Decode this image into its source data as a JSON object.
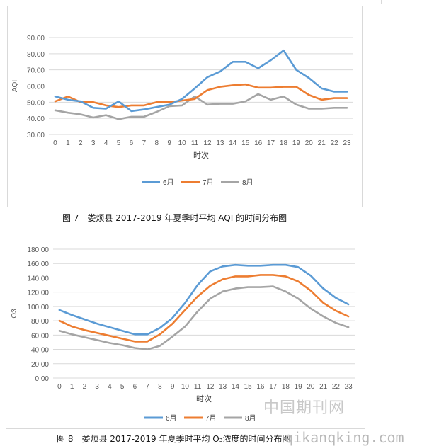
{
  "charts": [
    {
      "type": "line",
      "ylabel": "AQI",
      "xlabel": "时次",
      "ylim": [
        30,
        90
      ],
      "yticks": [
        "30.00",
        "40.00",
        "50.00",
        "60.00",
        "70.00",
        "80.00",
        "90.00"
      ],
      "x": [
        "0",
        "1",
        "2",
        "3",
        "4",
        "5",
        "6",
        "7",
        "8",
        "9",
        "10",
        "11",
        "12",
        "13",
        "14",
        "15",
        "16",
        "17",
        "18",
        "19",
        "20",
        "21",
        "22",
        "23"
      ],
      "grid": true,
      "legend": "bottom",
      "series": [
        {
          "name": "6月",
          "color": "#5b9bd5",
          "values": [
            53.5,
            51.5,
            50.5,
            46.5,
            46,
            50.5,
            44.5,
            45.5,
            47,
            48.5,
            52,
            58.5,
            65.5,
            69,
            75,
            75,
            71,
            76,
            82,
            70,
            65,
            58.5,
            56.5,
            56.5
          ]
        },
        {
          "name": "7月",
          "color": "#ed7d31",
          "values": [
            50.5,
            53.5,
            50,
            50,
            48,
            47,
            48,
            48,
            50,
            50,
            51,
            52,
            57.5,
            59.5,
            60.5,
            61,
            59,
            59,
            59.5,
            59.5,
            54.5,
            51.5,
            52.5,
            52.5
          ]
        },
        {
          "name": "8月",
          "color": "#a5a5a5",
          "values": [
            45,
            43.5,
            42.5,
            40.5,
            42,
            39.5,
            41,
            41,
            44,
            47.5,
            48,
            53.5,
            48.5,
            49,
            49,
            50.5,
            55,
            51.5,
            53.5,
            48.5,
            46,
            46,
            46.5,
            46.5
          ]
        }
      ]
    },
    {
      "type": "line",
      "ylabel": "O3",
      "xlabel": "时次",
      "ylim": [
        0,
        180
      ],
      "yticks": [
        "0.00",
        "20.00",
        "40.00",
        "60.00",
        "80.00",
        "100.00",
        "120.00",
        "140.00",
        "160.00",
        "180.00"
      ],
      "x": [
        "0",
        "1",
        "2",
        "3",
        "4",
        "5",
        "6",
        "7",
        "8",
        "9",
        "10",
        "11",
        "12",
        "13",
        "14",
        "15",
        "16",
        "17",
        "18",
        "19",
        "20",
        "21",
        "22",
        "23"
      ],
      "grid": true,
      "legend": "bottom",
      "series": [
        {
          "name": "6月",
          "color": "#5b9bd5",
          "values": [
            95,
            88,
            82,
            76,
            71,
            66,
            61,
            61,
            70,
            84,
            105,
            130,
            149,
            156,
            158,
            157,
            157,
            158,
            158,
            155,
            143,
            125,
            112,
            103
          ]
        },
        {
          "name": "7月",
          "color": "#ed7d31",
          "values": [
            80,
            72,
            67,
            63,
            59,
            55,
            51,
            51,
            61,
            76,
            95,
            114,
            129,
            138,
            142,
            142,
            144,
            144,
            142,
            135,
            122,
            105,
            94,
            86
          ]
        },
        {
          "name": "8月",
          "color": "#a5a5a5",
          "values": [
            66,
            61,
            57,
            53,
            49,
            46,
            42,
            40,
            45,
            58,
            72,
            93,
            111,
            121,
            125,
            127,
            127,
            128,
            121,
            111,
            97,
            86,
            77,
            71
          ]
        }
      ]
    }
  ],
  "captions": {
    "fig7": "图 7　娄烦县 2017-2019 年夏季时平均 AQI 的时间分布图",
    "fig8": "图 8　娄烦县 2017-2019 年夏季时平均 O₃浓度的时间分布图"
  },
  "watermark": {
    "cn": "中国期刊网",
    "url": "qikanqking.com"
  }
}
